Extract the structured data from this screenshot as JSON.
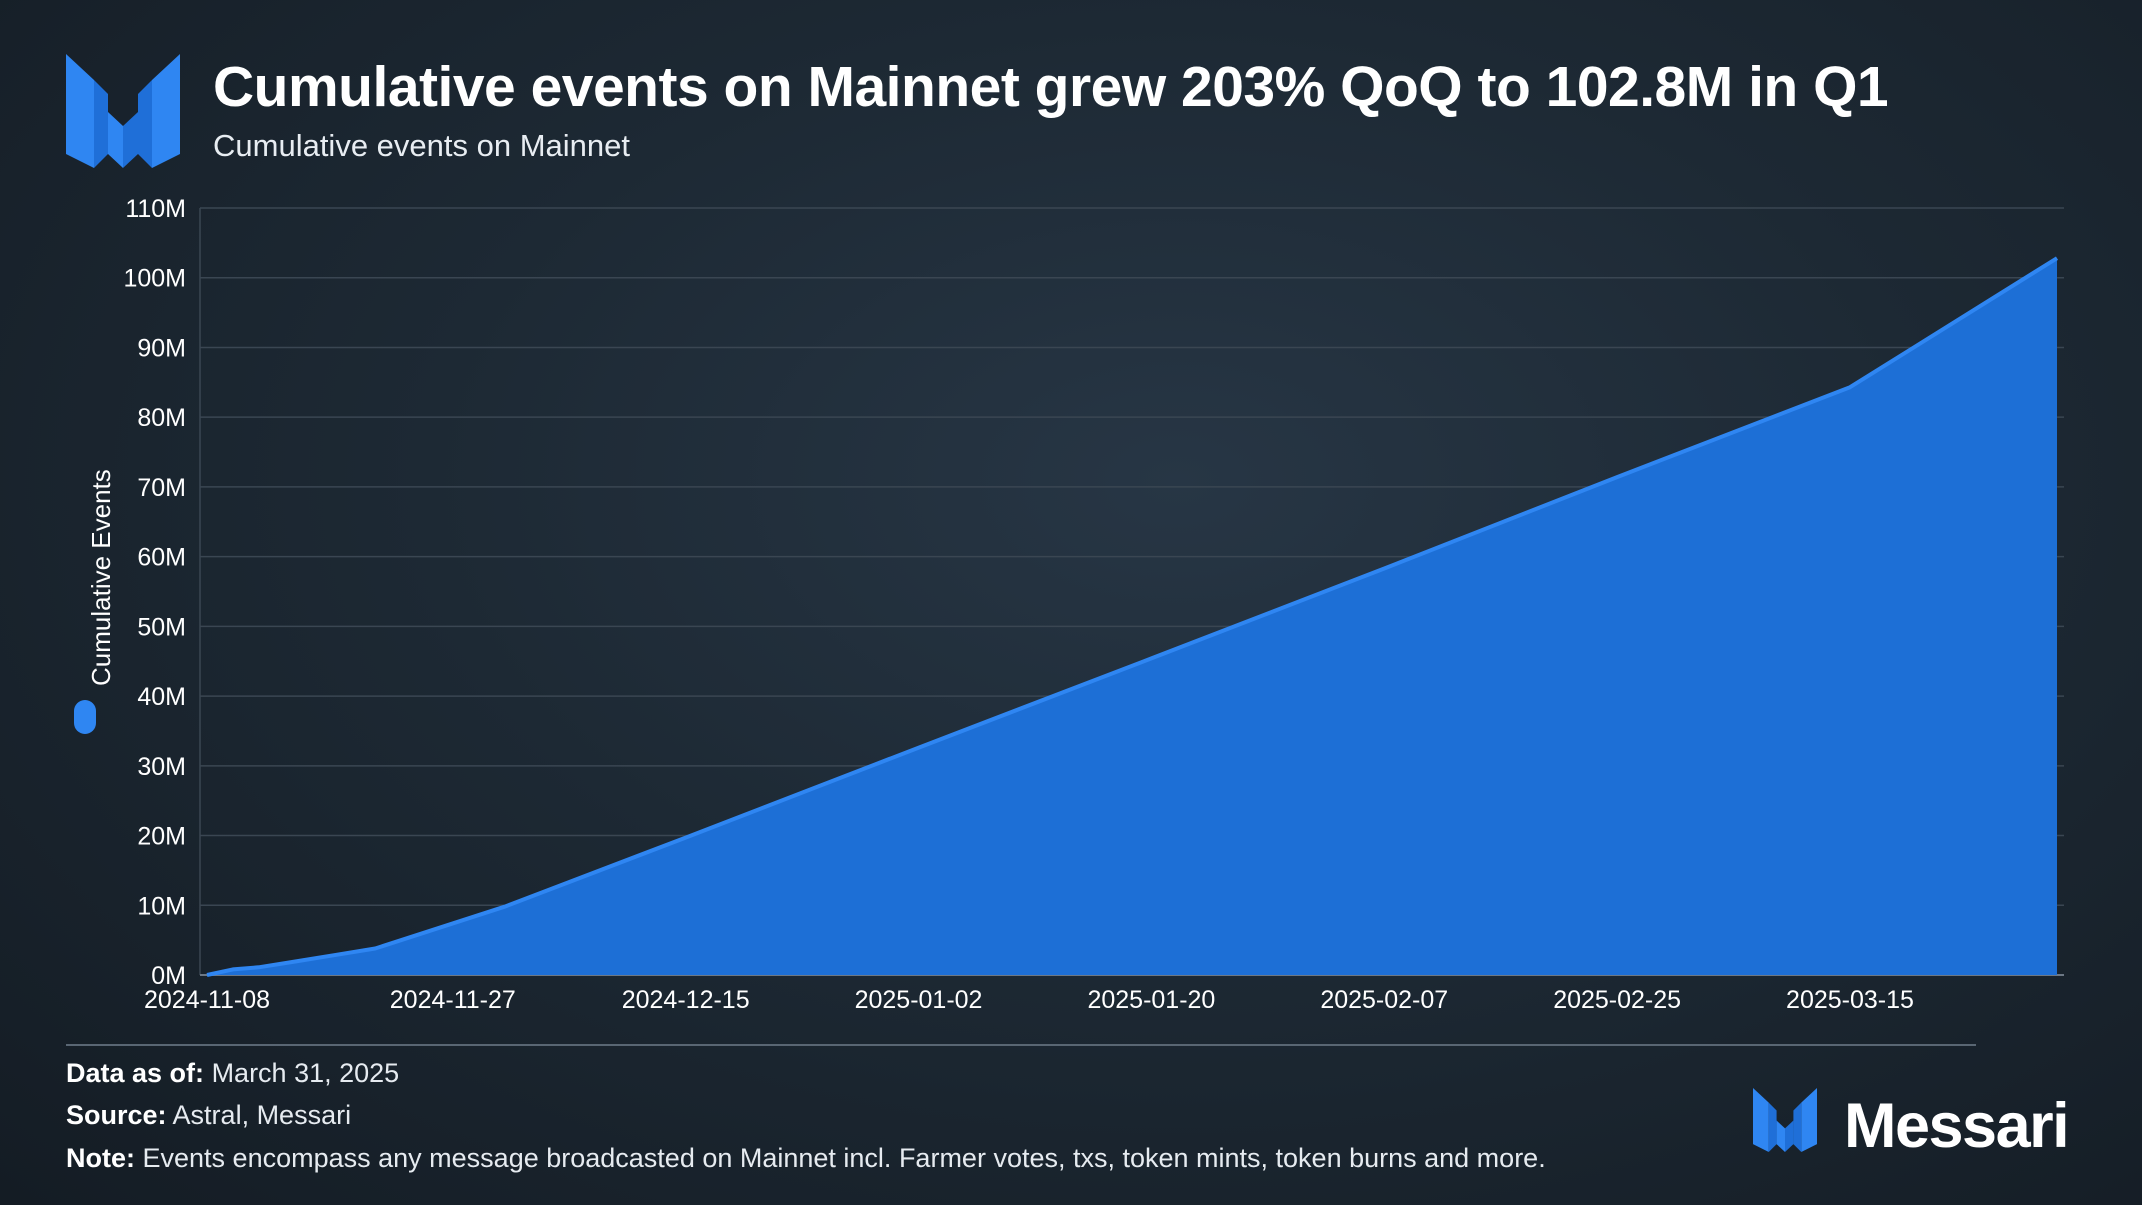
{
  "header": {
    "title": "Cumulative events on Mainnet grew 203% QoQ to 102.8M in Q1",
    "subtitle": "Cumulative events on Mainnet",
    "logo_icon": "messari-logo-icon"
  },
  "legend": {
    "label": "Cumulative Events",
    "color": "#2f86f2"
  },
  "colors": {
    "area_fill": "#1d6fd6",
    "line": "#2f86f2",
    "grid": "#3a4652",
    "axis_text": "#ffffff"
  },
  "chart_data": {
    "type": "area",
    "title": "Cumulative events on Mainnet grew 203% QoQ to 102.8M in Q1",
    "subtitle": "Cumulative events on Mainnet",
    "xlabel": "",
    "ylabel": "Cumulative Events",
    "ylim": [
      0,
      110000000
    ],
    "y_ticks": [
      0,
      10000000,
      20000000,
      30000000,
      40000000,
      50000000,
      60000000,
      70000000,
      80000000,
      90000000,
      100000000,
      110000000
    ],
    "y_tick_labels": [
      "0M",
      "10M",
      "20M",
      "30M",
      "40M",
      "50M",
      "60M",
      "70M",
      "80M",
      "90M",
      "100M",
      "110M"
    ],
    "x_tick_labels": [
      "2024-11-08",
      "2024-11-27",
      "2024-12-15",
      "2025-01-02",
      "2025-01-20",
      "2025-02-07",
      "2025-02-25",
      "2025-03-15"
    ],
    "xlim": [
      "2024-11-08",
      "2025-03-31"
    ],
    "grid": true,
    "legend_position": "left",
    "series": [
      {
        "name": "Cumulative Events",
        "points": [
          [
            "2024-11-08",
            0
          ],
          [
            "2024-11-10",
            800000
          ],
          [
            "2024-11-12",
            1100000
          ],
          [
            "2024-11-15",
            2000000
          ],
          [
            "2024-11-18",
            2900000
          ],
          [
            "2024-11-21",
            3800000
          ],
          [
            "2024-12-01",
            9800000
          ],
          [
            "2024-12-15",
            19700000
          ],
          [
            "2025-01-02",
            32600000
          ],
          [
            "2025-01-20",
            45400000
          ],
          [
            "2025-02-07",
            58300000
          ],
          [
            "2025-02-25",
            71400000
          ],
          [
            "2025-03-15",
            84300000
          ],
          [
            "2025-03-31",
            102800000
          ]
        ]
      }
    ]
  },
  "footer": {
    "data_as_of_label": "Data as of:",
    "data_as_of_value": "March 31, 2025",
    "source_label": "Source:",
    "source_value": "Astral, Messari",
    "note_label": "Note:",
    "note_value": "Events encompass any message broadcasted on Mainnet incl. Farmer votes, txs, token mints, token burns and more.",
    "brand_name": "Messari",
    "brand_icon": "messari-logo-icon"
  }
}
